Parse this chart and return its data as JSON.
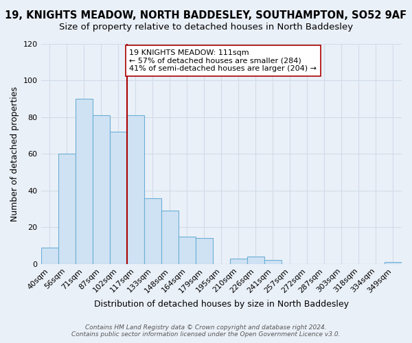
{
  "title": "19, KNIGHTS MEADOW, NORTH BADDESLEY, SOUTHAMPTON, SO52 9AF",
  "subtitle": "Size of property relative to detached houses in North Baddesley",
  "xlabel": "Distribution of detached houses by size in North Baddesley",
  "ylabel": "Number of detached properties",
  "bar_labels": [
    "40sqm",
    "56sqm",
    "71sqm",
    "87sqm",
    "102sqm",
    "117sqm",
    "133sqm",
    "148sqm",
    "164sqm",
    "179sqm",
    "195sqm",
    "210sqm",
    "226sqm",
    "241sqm",
    "257sqm",
    "272sqm",
    "287sqm",
    "303sqm",
    "318sqm",
    "334sqm",
    "349sqm"
  ],
  "bar_values": [
    9,
    60,
    90,
    81,
    72,
    81,
    36,
    29,
    15,
    14,
    0,
    3,
    4,
    2,
    0,
    0,
    0,
    0,
    0,
    0,
    1
  ],
  "bar_color": "#cfe2f3",
  "bar_edge_color": "#6baed6",
  "vline_x": 5.0,
  "vline_color": "#aa0000",
  "annotation_text": "19 KNIGHTS MEADOW: 111sqm\n← 57% of detached houses are smaller (284)\n41% of semi-detached houses are larger (204) →",
  "annotation_box_color": "white",
  "annotation_box_edge_color": "#aa0000",
  "ylim": [
    0,
    120
  ],
  "yticks": [
    0,
    20,
    40,
    60,
    80,
    100,
    120
  ],
  "footer1": "Contains HM Land Registry data © Crown copyright and database right 2024.",
  "footer2": "Contains public sector information licensed under the Open Government Licence v3.0.",
  "bg_color": "#eaf0f8",
  "grid_color": "#d0dce8",
  "title_fontsize": 10.5,
  "subtitle_fontsize": 9.5
}
